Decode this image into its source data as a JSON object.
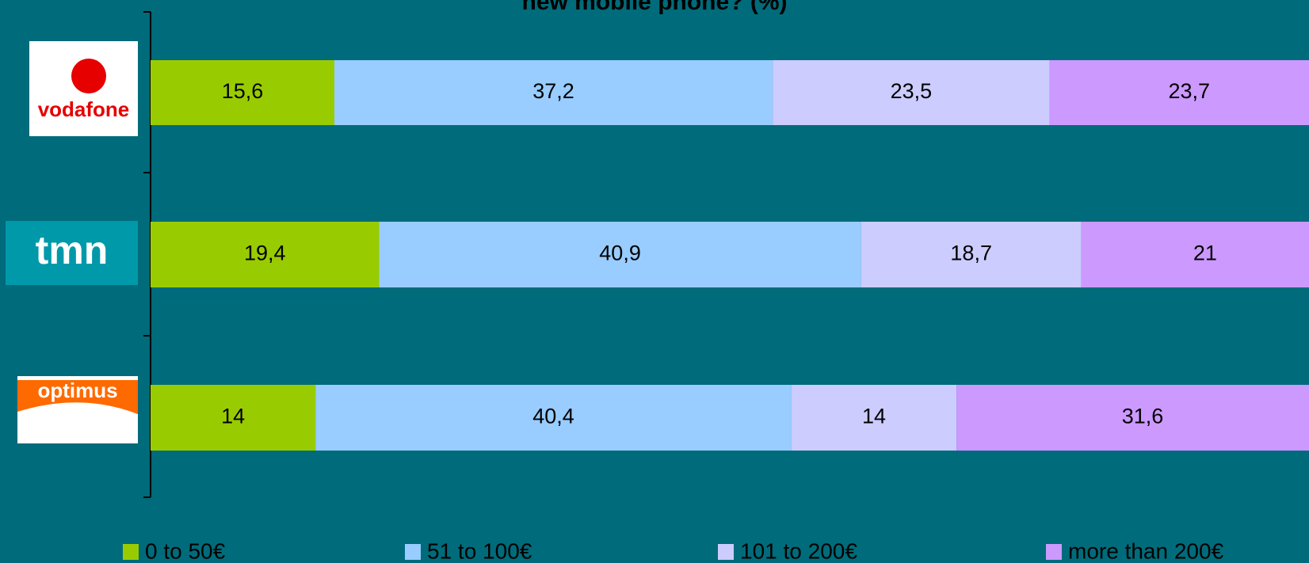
{
  "chart_data": {
    "type": "stacked-barh",
    "title": "new mobile phone? (%)",
    "categories": [
      "vodafone",
      "tmn",
      "optimus"
    ],
    "series": [
      {
        "name": "0 to 50€",
        "color": "#99cc00",
        "values": [
          15.6,
          19.4,
          14
        ],
        "value_labels": [
          "15,6",
          "19,4",
          "14"
        ]
      },
      {
        "name": "51 to 100€",
        "color": "#99ccff",
        "values": [
          37.2,
          40.9,
          40.4
        ],
        "value_labels": [
          "37,2",
          "40,9",
          "40,4"
        ]
      },
      {
        "name": "101 to 200€",
        "color": "#ccccff",
        "values": [
          23.5,
          18.7,
          14
        ],
        "value_labels": [
          "23,5",
          "18,7",
          "14"
        ]
      },
      {
        "name": "more than 200€",
        "color": "#cc99ff",
        "values": [
          23.7,
          21,
          31.6
        ],
        "value_labels": [
          "23,7",
          "21",
          "31,6"
        ]
      }
    ],
    "xlim": [
      0,
      100
    ]
  }
}
